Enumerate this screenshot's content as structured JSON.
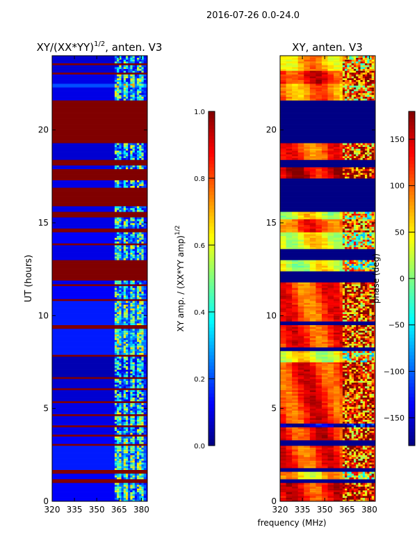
{
  "suptitle": "2016-07-26 0.0-24.0",
  "chart_data": [
    {
      "type": "heatmap",
      "title": "XY/(XX*YY)",
      "title_sup": "1/2",
      "title_suffix": ", anten. V3",
      "xlabel": "frequency (MHz)",
      "ylabel": "UT (hours)",
      "xlim": [
        320,
        384
      ],
      "ylim": [
        0,
        24
      ],
      "xticks": [
        "320",
        "335",
        "350",
        "365",
        "380"
      ],
      "yticks": [
        "0",
        "5",
        "10",
        "15",
        "20"
      ],
      "colorbar": {
        "label": "XY amp. / (XX*YY amp)",
        "label_sup": "1/2",
        "range": [
          0,
          1
        ],
        "ticks": [
          "0.0",
          "0.2",
          "0.4",
          "0.6",
          "0.8",
          "1.0"
        ],
        "colormap": "jet"
      },
      "noisy_freq_range_mhz": [
        362,
        382
      ],
      "bands_hours_value": [
        [
          0,
          1.0,
          0.12
        ],
        [
          1.0,
          1.2,
          1.0
        ],
        [
          1.2,
          1.5,
          0.12
        ],
        [
          1.5,
          1.7,
          1.0
        ],
        [
          1.7,
          3.0,
          0.15
        ],
        [
          3.0,
          3.1,
          1.0
        ],
        [
          3.1,
          3.5,
          0.12
        ],
        [
          3.5,
          3.6,
          1.0
        ],
        [
          3.6,
          4.0,
          0.1
        ],
        [
          4.0,
          4.1,
          1.0
        ],
        [
          4.1,
          4.6,
          0.1
        ],
        [
          4.6,
          4.7,
          1.0
        ],
        [
          4.7,
          5.3,
          0.1
        ],
        [
          5.3,
          5.4,
          1.0
        ],
        [
          5.4,
          6.0,
          0.08
        ],
        [
          6.0,
          6.1,
          1.0
        ],
        [
          6.1,
          6.6,
          0.08
        ],
        [
          6.6,
          6.7,
          1.0
        ],
        [
          6.7,
          7.8,
          0.05
        ],
        [
          7.8,
          7.9,
          1.0
        ],
        [
          7.9,
          9.3,
          0.15
        ],
        [
          9.3,
          9.5,
          1.0
        ],
        [
          9.5,
          10.8,
          0.15
        ],
        [
          10.8,
          10.9,
          1.0
        ],
        [
          10.9,
          11.6,
          0.12
        ],
        [
          11.6,
          11.7,
          1.0
        ],
        [
          11.7,
          11.9,
          0.1
        ],
        [
          11.9,
          13.0,
          1.0
        ],
        [
          13.0,
          13.8,
          0.1
        ],
        [
          13.8,
          13.9,
          1.0
        ],
        [
          13.9,
          14.5,
          0.12
        ],
        [
          14.5,
          14.7,
          1.0
        ],
        [
          14.7,
          15.3,
          0.1
        ],
        [
          15.3,
          15.6,
          1.0
        ],
        [
          15.6,
          15.9,
          0.1
        ],
        [
          15.9,
          16.9,
          1.0
        ],
        [
          16.9,
          17.3,
          0.1
        ],
        [
          17.3,
          17.9,
          1.0
        ],
        [
          17.9,
          18.1,
          0.1
        ],
        [
          18.1,
          18.4,
          1.0
        ],
        [
          18.4,
          19.3,
          0.08
        ],
        [
          19.3,
          21.6,
          1.0
        ],
        [
          21.6,
          22.3,
          0.1
        ],
        [
          22.3,
          22.5,
          0.2
        ],
        [
          22.5,
          23.0,
          0.1
        ],
        [
          23.0,
          23.1,
          1.0
        ],
        [
          23.1,
          23.5,
          0.08
        ],
        [
          23.5,
          23.6,
          1.0
        ],
        [
          23.6,
          24.0,
          0.08
        ]
      ]
    },
    {
      "type": "heatmap",
      "title": "XY, anten. V3",
      "xlabel": "frequency (MHz)",
      "ylabel": "",
      "xlim": [
        320,
        384
      ],
      "ylim": [
        0,
        24
      ],
      "xticks": [
        "320",
        "335",
        "350",
        "365",
        "380"
      ],
      "yticks": [
        "0",
        "5",
        "10",
        "15",
        "20"
      ],
      "colorbar": {
        "label": "phase (deg)",
        "range": [
          -180,
          180
        ],
        "ticks": [
          "−150",
          "−100",
          "−50",
          "0",
          "50",
          "100",
          "150"
        ],
        "tick_values": [
          -150,
          -100,
          -50,
          0,
          50,
          100,
          150
        ],
        "colormap": "jet"
      },
      "noisy_freq_range_mhz": [
        362,
        382
      ],
      "bands_hours_value": [
        [
          0,
          1.0,
          130
        ],
        [
          1.0,
          1.2,
          -175
        ],
        [
          1.2,
          1.6,
          60
        ],
        [
          1.6,
          1.8,
          -175
        ],
        [
          1.8,
          3.0,
          120
        ],
        [
          3.0,
          3.3,
          -175
        ],
        [
          3.3,
          4.0,
          130
        ],
        [
          4.0,
          4.2,
          -160
        ],
        [
          4.2,
          7.5,
          125
        ],
        [
          7.5,
          8.1,
          40
        ],
        [
          8.1,
          8.3,
          -175
        ],
        [
          8.3,
          9.5,
          120
        ],
        [
          9.5,
          9.7,
          -175
        ],
        [
          9.7,
          11.8,
          115
        ],
        [
          11.8,
          12.4,
          -178
        ],
        [
          12.4,
          13.0,
          30
        ],
        [
          13.0,
          13.6,
          -178
        ],
        [
          13.6,
          14.5,
          40
        ],
        [
          14.5,
          15.2,
          110
        ],
        [
          15.2,
          15.6,
          40
        ],
        [
          15.6,
          17.4,
          -178
        ],
        [
          17.4,
          18.0,
          150
        ],
        [
          18.0,
          18.4,
          -178
        ],
        [
          18.4,
          19.3,
          110
        ],
        [
          19.3,
          21.6,
          -178
        ],
        [
          21.6,
          22.5,
          90
        ],
        [
          22.5,
          23.2,
          130
        ],
        [
          23.2,
          24.0,
          70
        ]
      ]
    }
  ]
}
